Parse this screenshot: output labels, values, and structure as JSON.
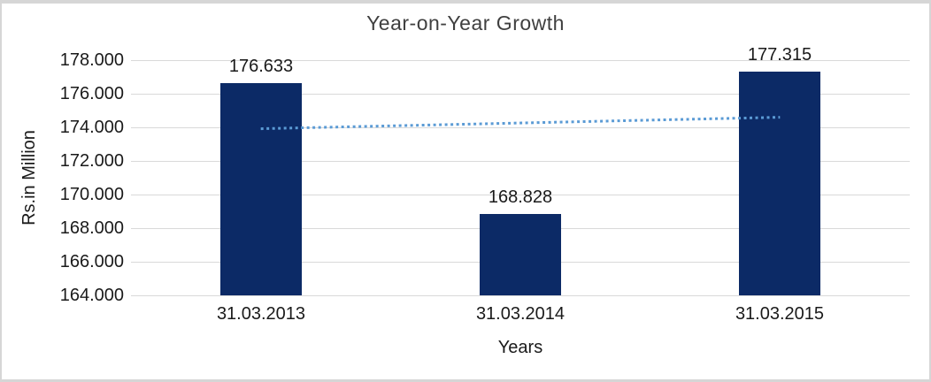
{
  "chart_data": {
    "type": "bar",
    "title": "Year-on-Year Growth",
    "xlabel": "Years",
    "ylabel": "Rs.in Million",
    "categories": [
      "31.03.2013",
      "31.03.2014",
      "31.03.2015"
    ],
    "values": [
      176.633,
      168.828,
      177.315
    ],
    "value_labels": [
      "176.633",
      "168.828",
      "177.315"
    ],
    "ylim": [
      164,
      178
    ],
    "ytick_values": [
      178,
      176,
      174,
      172,
      170,
      168,
      166,
      164
    ],
    "ytick_labels": [
      "178.000",
      "176.000",
      "174.000",
      "172.000",
      "170.000",
      "168.000",
      "166.000",
      "164.000"
    ],
    "grid": true,
    "legend": false,
    "bar_color": "#0C2A66",
    "grid_color": "#D9D9D9",
    "frame_color": "#D6D6D6",
    "text_color": "#1a1a1a",
    "trendline": {
      "type": "linear",
      "style": "dotted",
      "color": "#5B9BD5"
    }
  }
}
